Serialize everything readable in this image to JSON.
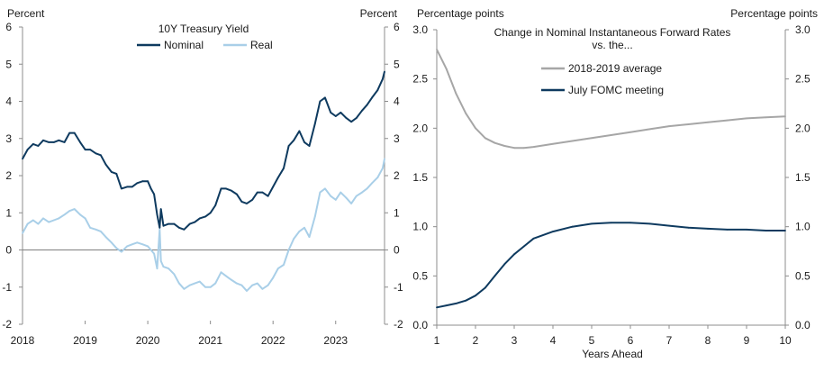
{
  "chart_data": [
    {
      "type": "line",
      "title": "10Y Treasury  Yield",
      "left_unit": "Percent",
      "right_unit": "Percent",
      "x_ticks": [
        "2018",
        "2019",
        "2020",
        "2021",
        "2022",
        "2023"
      ],
      "y_ticks": [
        "6",
        "5",
        "4",
        "3",
        "2",
        "1",
        "0",
        "-1",
        "-2"
      ],
      "xlim": [
        2018.0,
        2023.78
      ],
      "ylim": [
        -2,
        6
      ],
      "zero_line": true,
      "legend_position": "top-center",
      "series": [
        {
          "name": "Nominal",
          "color": "#0e3a5f",
          "x": [
            2018.0,
            2018.08,
            2018.17,
            2018.25,
            2018.33,
            2018.42,
            2018.5,
            2018.58,
            2018.67,
            2018.75,
            2018.83,
            2018.92,
            2019.0,
            2019.08,
            2019.17,
            2019.25,
            2019.33,
            2019.42,
            2019.5,
            2019.58,
            2019.67,
            2019.75,
            2019.83,
            2019.92,
            2020.0,
            2020.05,
            2020.1,
            2020.15,
            2020.19,
            2020.21,
            2020.25,
            2020.33,
            2020.42,
            2020.5,
            2020.58,
            2020.67,
            2020.75,
            2020.83,
            2020.92,
            2021.0,
            2021.08,
            2021.17,
            2021.25,
            2021.33,
            2021.42,
            2021.5,
            2021.58,
            2021.67,
            2021.75,
            2021.83,
            2021.92,
            2022.0,
            2022.08,
            2022.17,
            2022.25,
            2022.33,
            2022.42,
            2022.5,
            2022.58,
            2022.67,
            2022.75,
            2022.83,
            2022.92,
            2023.0,
            2023.08,
            2023.17,
            2023.25,
            2023.33,
            2023.42,
            2023.5,
            2023.58,
            2023.67,
            2023.75,
            2023.78
          ],
          "values": [
            2.45,
            2.7,
            2.85,
            2.8,
            2.95,
            2.9,
            2.9,
            2.95,
            2.9,
            3.15,
            3.15,
            2.9,
            2.7,
            2.7,
            2.6,
            2.55,
            2.3,
            2.1,
            2.05,
            1.65,
            1.7,
            1.7,
            1.8,
            1.85,
            1.85,
            1.65,
            1.5,
            0.95,
            0.6,
            1.1,
            0.65,
            0.7,
            0.7,
            0.6,
            0.55,
            0.7,
            0.75,
            0.85,
            0.9,
            1.0,
            1.2,
            1.65,
            1.65,
            1.6,
            1.5,
            1.3,
            1.25,
            1.35,
            1.55,
            1.55,
            1.45,
            1.7,
            1.95,
            2.2,
            2.8,
            2.95,
            3.2,
            2.9,
            2.8,
            3.4,
            4.0,
            4.1,
            3.7,
            3.6,
            3.7,
            3.55,
            3.45,
            3.55,
            3.75,
            3.9,
            4.1,
            4.3,
            4.6,
            4.8
          ]
        },
        {
          "name": "Real",
          "color": "#a9cfe8",
          "x": [
            2018.0,
            2018.08,
            2018.17,
            2018.25,
            2018.33,
            2018.42,
            2018.5,
            2018.58,
            2018.67,
            2018.75,
            2018.83,
            2018.92,
            2019.0,
            2019.08,
            2019.17,
            2019.25,
            2019.33,
            2019.42,
            2019.5,
            2019.58,
            2019.67,
            2019.75,
            2019.83,
            2019.92,
            2020.0,
            2020.05,
            2020.1,
            2020.15,
            2020.19,
            2020.21,
            2020.25,
            2020.33,
            2020.42,
            2020.5,
            2020.58,
            2020.67,
            2020.75,
            2020.83,
            2020.92,
            2021.0,
            2021.08,
            2021.17,
            2021.25,
            2021.33,
            2021.42,
            2021.5,
            2021.58,
            2021.67,
            2021.75,
            2021.83,
            2021.92,
            2022.0,
            2022.08,
            2022.17,
            2022.25,
            2022.33,
            2022.42,
            2022.5,
            2022.58,
            2022.67,
            2022.75,
            2022.83,
            2022.92,
            2023.0,
            2023.08,
            2023.17,
            2023.25,
            2023.33,
            2023.42,
            2023.5,
            2023.58,
            2023.67,
            2023.75,
            2023.78
          ],
          "values": [
            0.45,
            0.7,
            0.8,
            0.7,
            0.85,
            0.75,
            0.8,
            0.85,
            0.95,
            1.05,
            1.1,
            0.95,
            0.85,
            0.6,
            0.55,
            0.5,
            0.35,
            0.2,
            0.05,
            -0.05,
            0.1,
            0.15,
            0.2,
            0.15,
            0.1,
            0.0,
            -0.1,
            -0.5,
            0.55,
            -0.3,
            -0.45,
            -0.5,
            -0.65,
            -0.9,
            -1.05,
            -0.95,
            -0.9,
            -0.85,
            -1.0,
            -1.0,
            -0.9,
            -0.6,
            -0.7,
            -0.8,
            -0.9,
            -0.95,
            -1.1,
            -0.95,
            -0.9,
            -1.05,
            -0.95,
            -0.75,
            -0.5,
            -0.4,
            0.0,
            0.3,
            0.5,
            0.6,
            0.35,
            0.9,
            1.55,
            1.65,
            1.45,
            1.35,
            1.55,
            1.4,
            1.25,
            1.45,
            1.55,
            1.65,
            1.8,
            1.95,
            2.2,
            2.45
          ]
        }
      ]
    },
    {
      "type": "line",
      "title": "Change  in Nominal  Instantaneous  Forward Rates vs. the...",
      "title_line1": "Change  in Nominal  Instantaneous  Forward Rates",
      "title_line2": "vs. the...",
      "left_unit": "Percentage  points",
      "right_unit": "Percentage  points",
      "xlabel": "Years Ahead",
      "x_ticks": [
        "1",
        "2",
        "3",
        "4",
        "5",
        "6",
        "7",
        "8",
        "9",
        "10"
      ],
      "y_ticks": [
        "3.0",
        "2.5",
        "2.0",
        "1.5",
        "1.0",
        "0.5",
        "0.0"
      ],
      "xlim": [
        1,
        10
      ],
      "ylim": [
        0,
        3
      ],
      "legend_position": "top-center",
      "series": [
        {
          "name": "2018-2019 average",
          "color": "#a6a6a6",
          "x": [
            1.0,
            1.25,
            1.5,
            1.75,
            2.0,
            2.25,
            2.5,
            2.75,
            3.0,
            3.25,
            3.5,
            4.0,
            4.5,
            5.0,
            5.5,
            6.0,
            6.5,
            7.0,
            7.5,
            8.0,
            8.5,
            9.0,
            9.5,
            10.0
          ],
          "values": [
            2.8,
            2.6,
            2.35,
            2.15,
            2.0,
            1.9,
            1.85,
            1.82,
            1.8,
            1.8,
            1.81,
            1.84,
            1.87,
            1.9,
            1.93,
            1.96,
            1.99,
            2.02,
            2.04,
            2.06,
            2.08,
            2.1,
            2.11,
            2.12
          ]
        },
        {
          "name": "July FOMC meeting",
          "color": "#0e3a5f",
          "x": [
            1.0,
            1.25,
            1.5,
            1.75,
            2.0,
            2.25,
            2.5,
            2.75,
            3.0,
            3.25,
            3.5,
            4.0,
            4.5,
            5.0,
            5.5,
            6.0,
            6.5,
            7.0,
            7.5,
            8.0,
            8.5,
            9.0,
            9.5,
            10.0
          ],
          "values": [
            0.18,
            0.2,
            0.22,
            0.25,
            0.3,
            0.38,
            0.5,
            0.62,
            0.72,
            0.8,
            0.88,
            0.95,
            1.0,
            1.03,
            1.04,
            1.04,
            1.03,
            1.01,
            0.99,
            0.98,
            0.97,
            0.97,
            0.96,
            0.96
          ]
        }
      ]
    }
  ]
}
